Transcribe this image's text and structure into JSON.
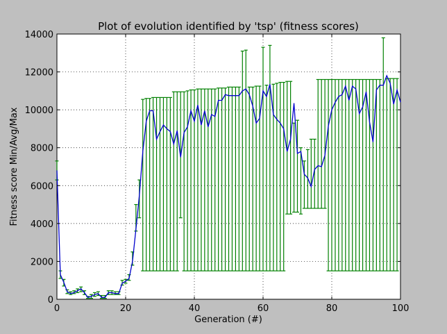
{
  "chart_data": {
    "type": "line",
    "title": "Plot of evolution identified by 'tsp' (fitness scores)",
    "xlabel": "Generation (#)",
    "ylabel": "Fitness score Min/Avg/Max",
    "xlim": [
      0,
      100
    ],
    "ylim": [
      0,
      14000
    ],
    "x_ticks": [
      0,
      20,
      40,
      60,
      80,
      100
    ],
    "y_ticks": [
      0,
      2000,
      4000,
      6000,
      8000,
      10000,
      12000,
      14000
    ],
    "grid": true,
    "colors": {
      "avg_line": "#0000cc",
      "error_bars": "#008000",
      "plot_bg": "#ffffff",
      "window_bg": "#bfbfbf",
      "grid": "#000000"
    },
    "series": [
      {
        "kind": "line",
        "x": [
          0,
          1,
          2,
          3,
          4,
          5,
          6,
          7,
          8,
          9,
          10,
          11,
          12,
          13,
          14,
          15,
          16,
          17,
          18,
          19,
          20,
          21,
          22,
          23,
          24,
          25,
          26,
          27,
          28,
          29,
          30,
          31,
          32,
          33,
          34,
          35,
          36,
          37,
          38,
          39,
          40,
          41,
          42,
          43,
          44,
          45,
          46,
          47,
          48,
          49,
          50,
          51,
          52,
          53,
          54,
          55,
          56,
          57,
          58,
          59,
          60,
          61,
          62,
          63,
          64,
          65,
          66,
          67,
          68,
          69,
          70,
          71,
          72,
          73,
          74,
          75,
          76,
          77,
          78,
          79,
          80,
          81,
          82,
          83,
          84,
          85,
          86,
          87,
          88,
          89,
          90,
          91,
          92,
          93,
          94,
          95,
          96,
          97,
          98,
          99,
          100
        ],
        "values": [
          6800,
          1300,
          900,
          400,
          300,
          350,
          450,
          550,
          350,
          100,
          150,
          250,
          300,
          100,
          100,
          350,
          350,
          300,
          300,
          850,
          950,
          1100,
          2000,
          3700,
          5500,
          7800,
          9400,
          9950,
          9950,
          8450,
          8850,
          9200,
          9000,
          8850,
          8200,
          8900,
          7500,
          8800,
          9100,
          9950,
          9400,
          10250,
          9200,
          9950,
          9100,
          9750,
          9650,
          10500,
          10500,
          10800,
          10750,
          10750,
          10750,
          10750,
          11000,
          11100,
          10800,
          10200,
          9300,
          9550,
          11000,
          10700,
          11350,
          9750,
          9500,
          9300,
          9000,
          7800,
          8450,
          10350,
          7700,
          7800,
          6600,
          6400,
          5950,
          6850,
          7050,
          7000,
          7600,
          9150,
          10000,
          10400,
          10700,
          10800,
          11250,
          10500,
          11250,
          11100,
          9800,
          10150,
          10950,
          9350,
          8300,
          11050,
          11300,
          11300,
          11800,
          11400,
          10300,
          11050,
          10400
        ]
      },
      {
        "kind": "error_bars",
        "x": [
          24,
          25,
          26,
          27,
          28,
          29,
          30,
          31,
          32,
          33,
          34,
          35,
          36,
          37,
          38,
          39,
          40,
          41,
          42,
          43,
          44,
          45,
          46,
          47,
          48,
          49,
          50,
          51,
          52,
          53,
          54,
          55,
          56,
          57,
          58,
          59,
          60,
          61,
          62,
          63,
          64,
          65,
          66,
          67,
          68,
          69,
          70,
          71,
          72,
          73,
          74,
          75,
          76,
          77,
          78,
          79,
          80,
          81,
          82,
          83,
          84,
          85,
          86,
          87,
          88,
          89,
          90,
          91,
          92,
          93,
          94,
          95,
          96,
          97,
          98,
          99
        ],
        "min": [
          4300,
          1500,
          1500,
          1500,
          1500,
          1500,
          1500,
          1500,
          1500,
          1500,
          1500,
          1500,
          4300,
          1500,
          1500,
          1500,
          1500,
          1500,
          1500,
          1500,
          1500,
          1500,
          1500,
          1500,
          1500,
          1500,
          1500,
          1500,
          1500,
          1500,
          1500,
          1500,
          1500,
          1500,
          1500,
          1500,
          1500,
          1500,
          1500,
          1500,
          1500,
          1500,
          1500,
          4500,
          4500,
          4600,
          4600,
          4500,
          4800,
          4800,
          4800,
          4800,
          4800,
          4800,
          4800,
          1500,
          1500,
          1500,
          1500,
          1500,
          1500,
          1500,
          1500,
          1500,
          1500,
          1500,
          1500,
          1500,
          1500,
          1500,
          1500,
          1500,
          1500,
          1500,
          1500,
          1500
        ],
        "max": [
          6300,
          10550,
          10600,
          10600,
          10650,
          10650,
          10650,
          10650,
          10650,
          10650,
          10950,
          10950,
          10950,
          10950,
          11000,
          11050,
          11050,
          11100,
          11100,
          11100,
          11100,
          11100,
          11100,
          11150,
          11150,
          11150,
          11200,
          11200,
          11200,
          11200,
          13100,
          13150,
          11200,
          11200,
          11250,
          11250,
          13300,
          11300,
          13400,
          11350,
          11400,
          11450,
          11450,
          11500,
          11500,
          9300,
          9450,
          8000,
          7300,
          7900,
          8450,
          8450,
          11600,
          11600,
          11600,
          11600,
          11600,
          11600,
          11600,
          11600,
          11600,
          11600,
          11600,
          11600,
          11600,
          11600,
          11600,
          11600,
          11600,
          11600,
          11600,
          13800,
          11650,
          11650,
          11650,
          11650
        ]
      },
      {
        "kind": "error_bars_early",
        "x": [
          0,
          1,
          2,
          3,
          4,
          5,
          6,
          7,
          8,
          9,
          10,
          11,
          12,
          13,
          14,
          15,
          16,
          17,
          18,
          19,
          20,
          21,
          22,
          23
        ],
        "min": [
          6300,
          1100,
          700,
          300,
          250,
          300,
          350,
          400,
          250,
          50,
          50,
          150,
          200,
          50,
          50,
          250,
          250,
          250,
          250,
          750,
          850,
          1000,
          1800,
          3600
        ],
        "max": [
          7300,
          1500,
          1050,
          500,
          400,
          450,
          550,
          650,
          450,
          150,
          250,
          350,
          400,
          200,
          200,
          450,
          450,
          400,
          400,
          1000,
          1050,
          1300,
          2500,
          5000
        ]
      }
    ]
  }
}
